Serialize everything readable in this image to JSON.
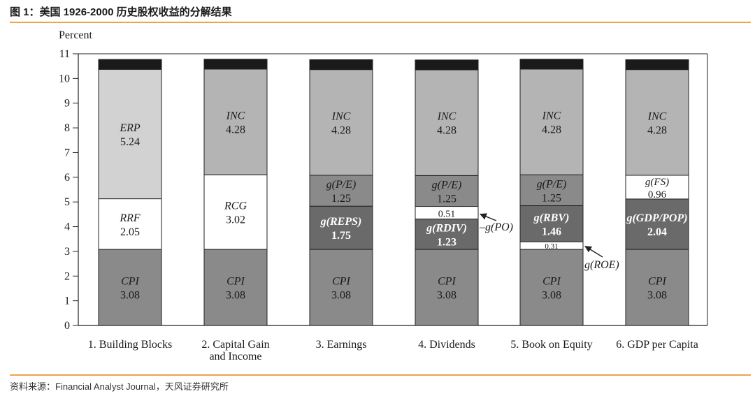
{
  "figure": {
    "title": "图 1：美国 1926-2000 历史股权收益的分解结果",
    "source": "资料来源：Financial Analyst Journal，天风证券研究所"
  },
  "chart_data": {
    "type": "bar",
    "stacked": true,
    "ylabel": "Percent",
    "xlabel": "",
    "ylim": [
      0,
      11
    ],
    "yticks": [
      0,
      1,
      2,
      3,
      4,
      5,
      6,
      7,
      8,
      9,
      10,
      11
    ],
    "grid": false,
    "legend": "none",
    "colors": {
      "cpi": "#8a8a8a",
      "dark": "#6a6a6a",
      "mid": "#b4b4b4",
      "light": "#d2d2d2",
      "white": "#ffffff",
      "cap": "#1a1a1a",
      "outline": "#222222"
    },
    "categories": [
      {
        "label": "1. Building Blocks",
        "label2": ""
      },
      {
        "label": "2. Capital Gain",
        "label2": "and Income"
      },
      {
        "label": "3. Earnings",
        "label2": ""
      },
      {
        "label": "4. Dividends",
        "label2": ""
      },
      {
        "label": "5. Book on Equity",
        "label2": ""
      },
      {
        "label": "6. GDP per Capita",
        "label2": ""
      }
    ],
    "stacks": [
      [
        {
          "label": "CPI",
          "value": 3.08,
          "text": "3.08",
          "color": "cpi"
        },
        {
          "label": "RRF",
          "value": 2.05,
          "text": "2.05",
          "color": "white"
        },
        {
          "label": "ERP",
          "value": 5.24,
          "text": "5.24",
          "color": "light"
        },
        {
          "label": "",
          "value": 0.4,
          "text": "",
          "color": "cap"
        }
      ],
      [
        {
          "label": "CPI",
          "value": 3.08,
          "text": "3.08",
          "color": "cpi"
        },
        {
          "label": "RCG",
          "value": 3.02,
          "text": "3.02",
          "color": "white"
        },
        {
          "label": "INC",
          "value": 4.28,
          "text": "4.28",
          "color": "mid"
        },
        {
          "label": "",
          "value": 0.4,
          "text": "",
          "color": "cap"
        }
      ],
      [
        {
          "label": "CPI",
          "value": 3.08,
          "text": "3.08",
          "color": "cpi"
        },
        {
          "label": "g(REPS)",
          "value": 1.75,
          "text": "1.75",
          "color": "dark"
        },
        {
          "label": "g(P/E)",
          "value": 1.25,
          "text": "1.25",
          "color": "cpi"
        },
        {
          "label": "INC",
          "value": 4.28,
          "text": "4.28",
          "color": "mid"
        },
        {
          "label": "",
          "value": 0.4,
          "text": "",
          "color": "cap"
        }
      ],
      [
        {
          "label": "CPI",
          "value": 3.08,
          "text": "3.08",
          "color": "cpi"
        },
        {
          "label": "g(RDIV)",
          "value": 1.23,
          "text": "1.23",
          "color": "dark"
        },
        {
          "label": "",
          "value": 0.51,
          "text": "0.51",
          "color": "white"
        },
        {
          "label": "g(P/E)",
          "value": 1.25,
          "text": "1.25",
          "color": "cpi"
        },
        {
          "label": "INC",
          "value": 4.28,
          "text": "4.28",
          "color": "mid"
        },
        {
          "label": "",
          "value": 0.4,
          "text": "",
          "color": "cap"
        }
      ],
      [
        {
          "label": "CPI",
          "value": 3.08,
          "text": "3.08",
          "color": "cpi"
        },
        {
          "label": "",
          "value": 0.31,
          "text": "0.31",
          "color": "white"
        },
        {
          "label": "g(RBV)",
          "value": 1.46,
          "text": "1.46",
          "color": "dark"
        },
        {
          "label": "g(P/E)",
          "value": 1.25,
          "text": "1.25",
          "color": "cpi"
        },
        {
          "label": "INC",
          "value": 4.28,
          "text": "4.28",
          "color": "mid"
        },
        {
          "label": "",
          "value": 0.4,
          "text": "",
          "color": "cap"
        }
      ],
      [
        {
          "label": "CPI",
          "value": 3.08,
          "text": "3.08",
          "color": "cpi"
        },
        {
          "label": "g(GDP/POP)",
          "value": 2.04,
          "text": "2.04",
          "color": "dark"
        },
        {
          "label": "g(FS)",
          "value": 0.96,
          "text": "0.96",
          "color": "white"
        },
        {
          "label": "INC",
          "value": 4.28,
          "text": "4.28",
          "color": "mid"
        },
        {
          "label": "",
          "value": 0.4,
          "text": "",
          "color": "cap"
        }
      ]
    ],
    "annotations": [
      {
        "text": "–g(PO)",
        "bar": 3,
        "segment": 2
      },
      {
        "text": "g(ROE)",
        "bar": 4,
        "segment": 1
      }
    ]
  }
}
